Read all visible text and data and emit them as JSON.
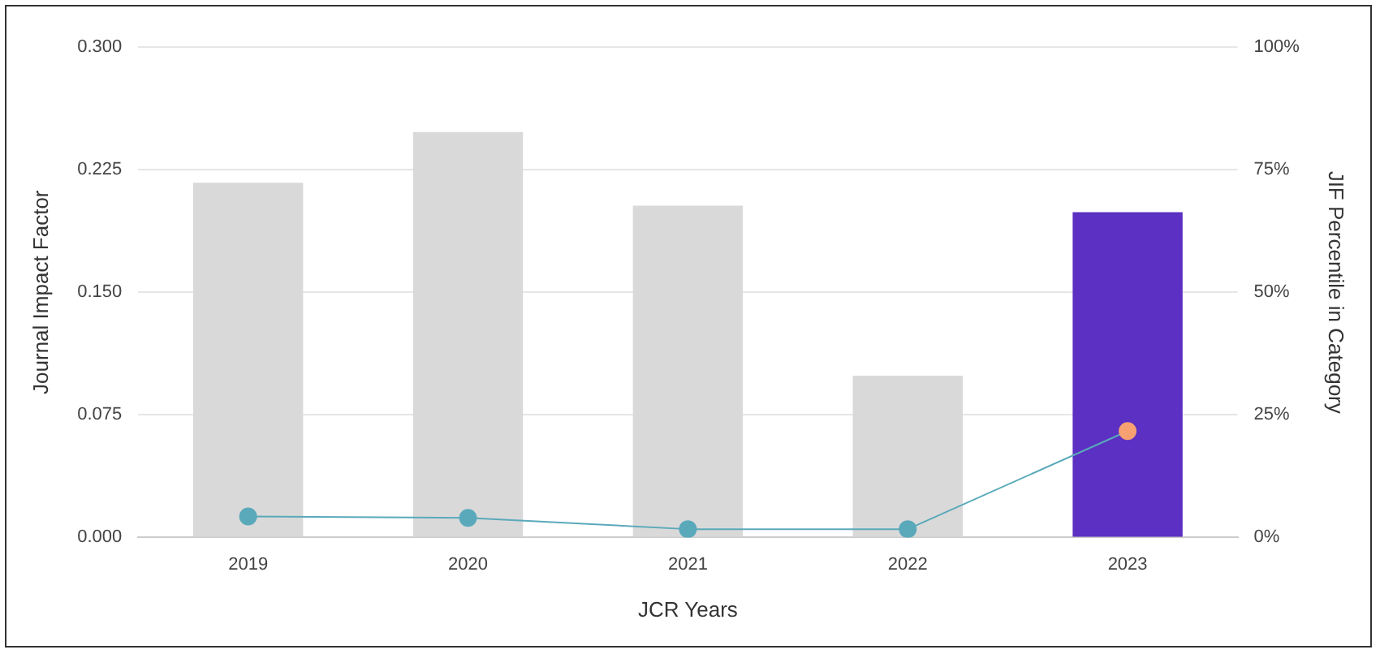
{
  "chart_data": {
    "type": "bar",
    "xlabel": "JCR Years",
    "ylabel": "Journal Impact Factor",
    "y2label": "JIF Percentile in Category",
    "categories": [
      "2019",
      "2020",
      "2021",
      "2022",
      "2023"
    ],
    "series": [
      {
        "colors": [
          "#d9d9d9",
          "#d9d9d9",
          "#d9d9d9",
          "#d9d9d9",
          "#5b30c2"
        ],
        "values": [
          0.217,
          0.248,
          0.203,
          0.099,
          0.199
        ]
      },
      {
        "type": "line",
        "axis": "y2",
        "color": "#5aa9bb",
        "colors": [
          "#5aa9bb",
          "#5aa9bb",
          "#5aa9bb",
          "#5aa9bb",
          "#f7a072"
        ],
        "values": [
          4.3,
          4.0,
          1.7,
          1.7,
          21.7
        ]
      }
    ],
    "ylim": [
      0,
      0.3
    ],
    "yticks": [
      {
        "value": 0,
        "label": "0.000"
      },
      {
        "value": 0.075,
        "label": "0.075"
      },
      {
        "value": 0.15,
        "label": "0.150"
      },
      {
        "value": 0.225,
        "label": "0.225"
      },
      {
        "value": 0.3,
        "label": "0.300"
      }
    ],
    "y2lim": [
      0,
      100
    ],
    "y2ticks": [
      {
        "value": 0,
        "label": "0%"
      },
      {
        "value": 25,
        "label": "25%"
      },
      {
        "value": 50,
        "label": "50%"
      },
      {
        "value": 75,
        "label": "75%"
      },
      {
        "value": 100,
        "label": "100%"
      }
    ],
    "grid": "y",
    "legend": false,
    "marker": "circle"
  }
}
